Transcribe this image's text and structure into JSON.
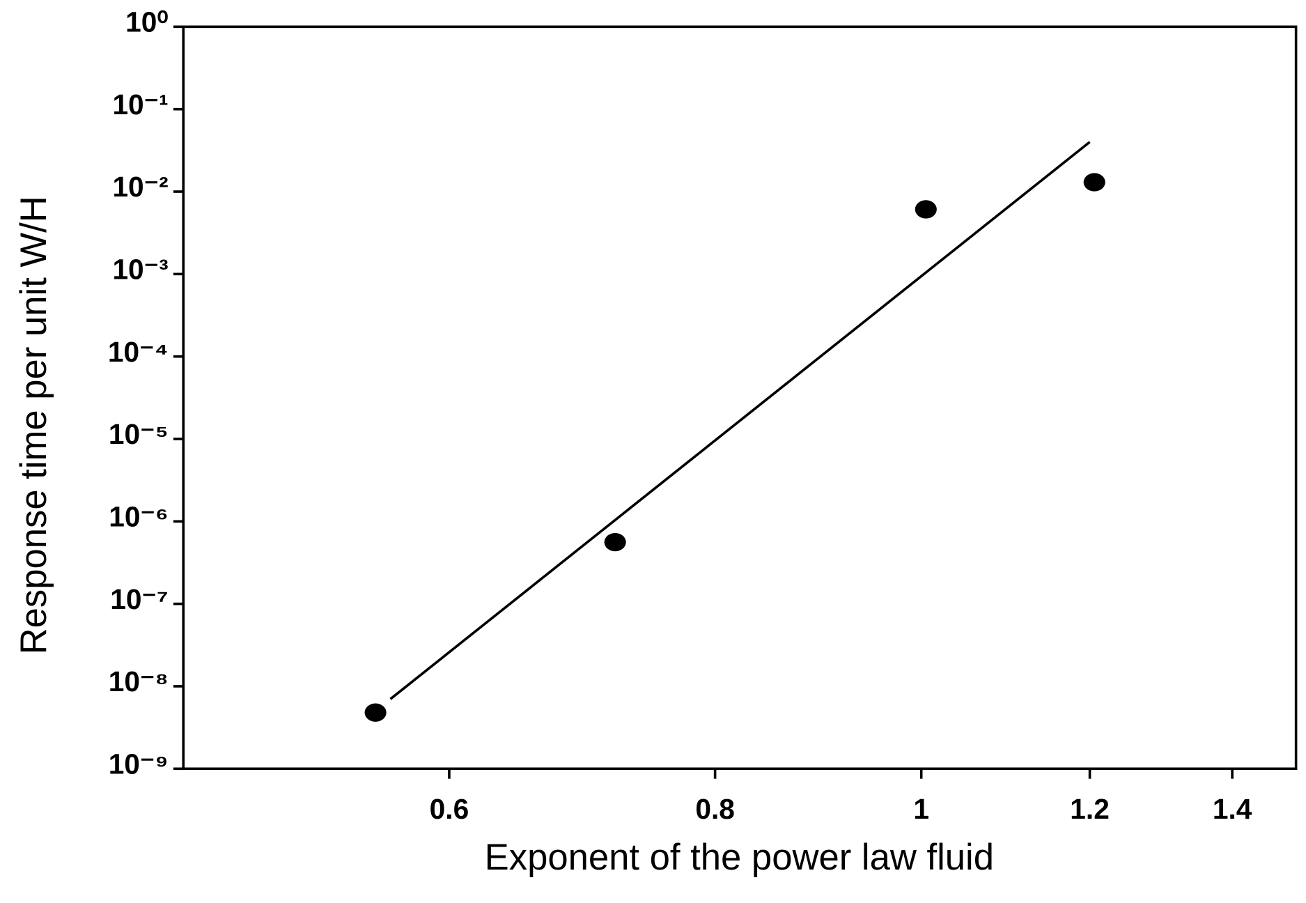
{
  "chart_data": {
    "type": "scatter",
    "xlabel": "Exponent of the power law fluid",
    "ylabel": "Response time per unit W/H",
    "xscale": "log",
    "yscale": "log",
    "xlim": [
      0.45,
      1.5
    ],
    "ylim": [
      1e-09,
      1
    ],
    "xticks": [
      0.6,
      0.8,
      1,
      1.2,
      1.4
    ],
    "yticks": [
      {
        "value": 1,
        "label": "10⁰"
      },
      {
        "value": 0.1,
        "label": "10⁻¹"
      },
      {
        "value": 0.01,
        "label": "10⁻²"
      },
      {
        "value": 0.001,
        "label": "10⁻³"
      },
      {
        "value": 0.0001,
        "label": "10⁻⁴"
      },
      {
        "value": 1e-05,
        "label": "10⁻⁵"
      },
      {
        "value": 1e-06,
        "label": "10⁻⁶"
      },
      {
        "value": 1e-07,
        "label": "10⁻⁷"
      },
      {
        "value": 1e-08,
        "label": "10⁻⁸"
      },
      {
        "value": 1e-09,
        "label": "10⁻⁹"
      }
    ],
    "grid": false,
    "series": [
      {
        "type": "scatter",
        "color": "#000000",
        "x": [
          0.554,
          0.718,
          1.005,
          1.206
        ],
        "values": [
          4.8e-09,
          5.6e-07,
          0.0061,
          0.013
        ]
      },
      {
        "type": "line",
        "color": "#000000",
        "x": [
          0.563,
          1.2
        ],
        "values": [
          7e-09,
          0.04
        ]
      }
    ]
  }
}
